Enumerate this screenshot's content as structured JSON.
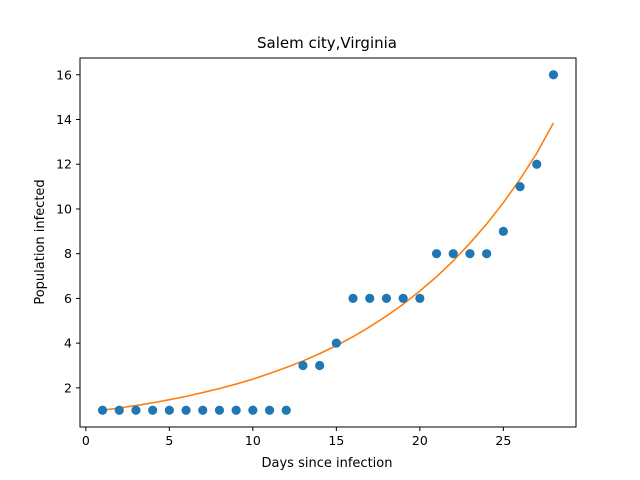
{
  "chart_data": {
    "type": "scatter",
    "title": "Salem city,Virginia",
    "xlabel": "Days since infection",
    "ylabel": "Population infected",
    "xlim": [
      -0.35,
      29.35
    ],
    "ylim": [
      0.25,
      16.75
    ],
    "xticks": [
      0,
      5,
      10,
      15,
      20,
      25
    ],
    "yticks": [
      2,
      4,
      6,
      8,
      10,
      12,
      14,
      16
    ],
    "grid": false,
    "colors": {
      "points": "#1f77b4",
      "fit": "#ff7f0e"
    },
    "series": [
      {
        "type": "scatter",
        "x": [
          1,
          2,
          3,
          4,
          5,
          6,
          7,
          8,
          9,
          10,
          11,
          12,
          13,
          14,
          15,
          16,
          17,
          18,
          19,
          20,
          21,
          22,
          23,
          24,
          25,
          26,
          27,
          28
        ],
        "y": [
          1,
          1,
          1,
          1,
          1,
          1,
          1,
          1,
          1,
          1,
          1,
          1,
          3,
          3,
          4,
          6,
          6,
          6,
          6,
          6,
          8,
          8,
          8,
          8,
          9,
          11,
          12,
          16
        ]
      },
      {
        "type": "line",
        "x": [
          1,
          2,
          3,
          4,
          5,
          6,
          7,
          8,
          9,
          10,
          11,
          12,
          13,
          14,
          15,
          16,
          17,
          18,
          19,
          20,
          21,
          22,
          23,
          24,
          25,
          26,
          27,
          28
        ],
        "y": [
          1.0,
          1.1,
          1.21,
          1.33,
          1.47,
          1.62,
          1.79,
          1.97,
          2.17,
          2.39,
          2.64,
          2.91,
          3.2,
          3.53,
          3.89,
          4.29,
          4.73,
          5.21,
          5.74,
          6.33,
          6.97,
          7.68,
          8.47,
          9.33,
          10.28,
          11.33,
          12.49,
          13.85
        ]
      }
    ]
  }
}
